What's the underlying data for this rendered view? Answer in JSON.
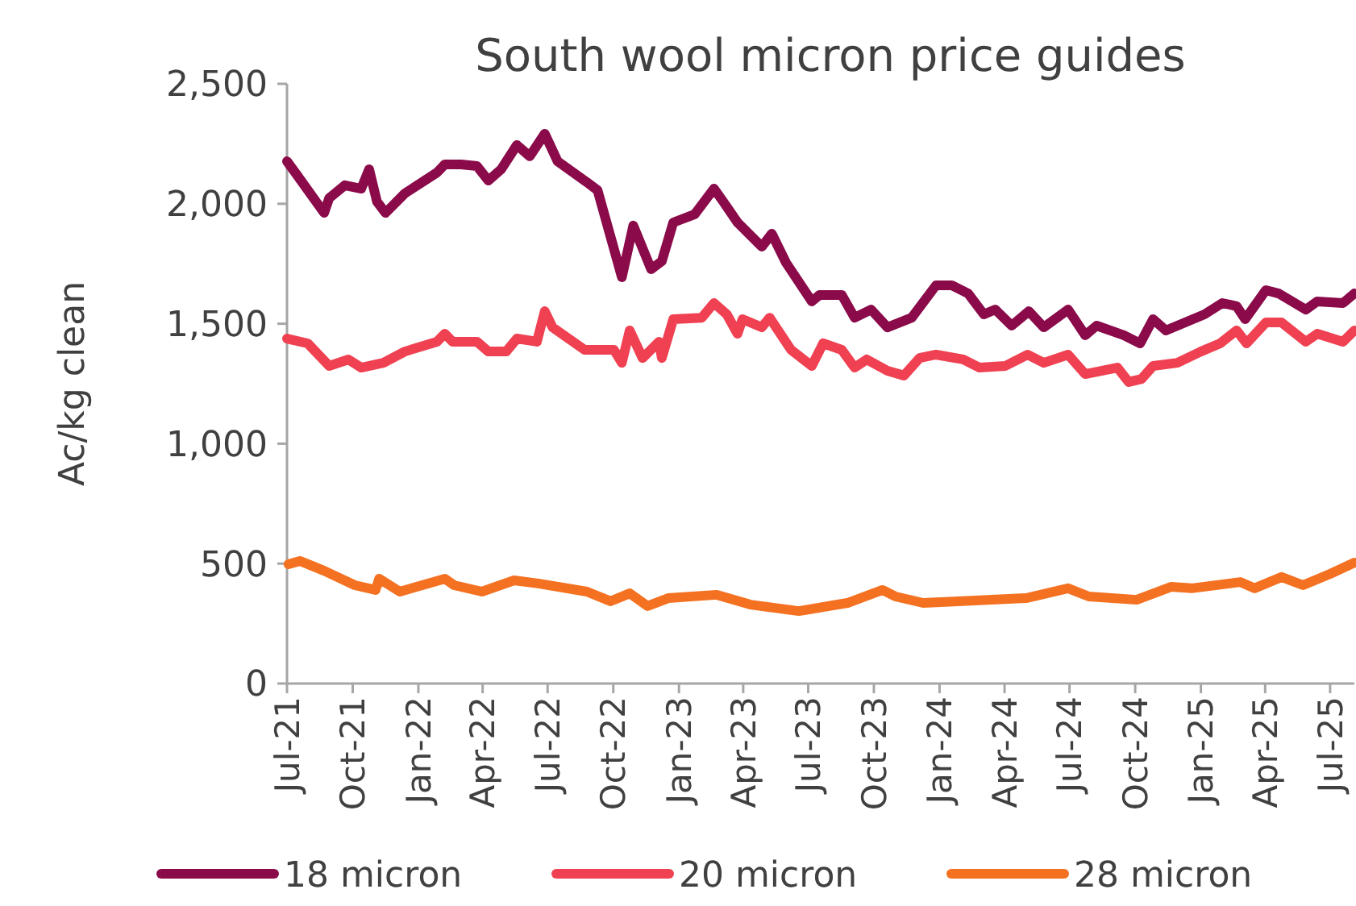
{
  "chart_data": {
    "type": "line",
    "title": "South wool micron price guides",
    "ylabel": "Ac/kg clean",
    "xlim": [
      "2021-07-01",
      "2025-08-04"
    ],
    "xticks": [
      {
        "value": "2021-07-01",
        "label": "Jul-21"
      },
      {
        "value": "2021-10-01",
        "label": "Oct-21"
      },
      {
        "value": "2022-01-01",
        "label": "Jan-22"
      },
      {
        "value": "2022-04-01",
        "label": "Apr-22"
      },
      {
        "value": "2022-07-01",
        "label": "Jul-22"
      },
      {
        "value": "2022-10-01",
        "label": "Oct-22"
      },
      {
        "value": "2023-01-01",
        "label": "Jan-23"
      },
      {
        "value": "2023-04-01",
        "label": "Apr-23"
      },
      {
        "value": "2023-07-01",
        "label": "Jul-23"
      },
      {
        "value": "2023-10-01",
        "label": "Oct-23"
      },
      {
        "value": "2024-01-01",
        "label": "Jan-24"
      },
      {
        "value": "2024-04-01",
        "label": "Apr-24"
      },
      {
        "value": "2024-07-01",
        "label": "Jul-24"
      },
      {
        "value": "2024-10-01",
        "label": "Oct-24"
      },
      {
        "value": "2025-01-01",
        "label": "Jan-25"
      },
      {
        "value": "2025-04-01",
        "label": "Apr-25"
      },
      {
        "value": "2025-07-01",
        "label": "Jul-25"
      }
    ],
    "ylim": [
      0,
      2500
    ],
    "yticks": [
      0,
      {
        "value": 500,
        "label": "500"
      },
      {
        "value": 1000,
        "label": "1,000"
      },
      {
        "value": 1500,
        "label": "1,500"
      },
      {
        "value": 2000,
        "label": "2,000"
      },
      {
        "value": 2500,
        "label": "2,500"
      }
    ],
    "grid": false,
    "legend": "bottom",
    "marker": "none",
    "line_style": "solid",
    "series": [
      {
        "name": "18 micron",
        "color": "#8a0a4a",
        "x": [
          "2021-07-01",
          "2021-07-14",
          "2021-08-22",
          "2021-08-29",
          "2021-09-20",
          "2021-10-13",
          "2021-10-24",
          "2021-11-04",
          "2021-11-16",
          "2021-12-13",
          "2022-01-27",
          "2022-02-07",
          "2022-03-02",
          "2022-03-24",
          "2022-04-09",
          "2022-04-27",
          "2022-05-19",
          "2022-06-06",
          "2022-06-27",
          "2022-07-15",
          "2022-08-25",
          "2022-09-09",
          "2022-10-13",
          "2022-10-29",
          "2022-11-23",
          "2022-12-08",
          "2022-12-24",
          "2023-01-23",
          "2023-02-19",
          "2023-03-04",
          "2023-03-24",
          "2023-04-27",
          "2023-05-11",
          "2023-05-31",
          "2023-07-06",
          "2023-07-17",
          "2023-08-17",
          "2023-09-04",
          "2023-09-27",
          "2023-10-20",
          "2023-11-23",
          "2023-12-27",
          "2024-01-18",
          "2024-02-10",
          "2024-03-03",
          "2024-03-19",
          "2024-04-11",
          "2024-05-05",
          "2024-05-26",
          "2024-06-29",
          "2024-07-23",
          "2024-08-08",
          "2024-09-15",
          "2024-10-08",
          "2024-10-26",
          "2024-11-13",
          "2025-01-06",
          "2025-01-31",
          "2025-02-20",
          "2025-03-04",
          "2025-04-02",
          "2025-04-20",
          "2025-05-28",
          "2025-06-13",
          "2025-07-19",
          "2025-08-04"
        ],
        "values": [
          2177,
          2124,
          1962,
          2023,
          2077,
          2063,
          2144,
          2009,
          1962,
          2043,
          2130,
          2164,
          2164,
          2157,
          2097,
          2144,
          2245,
          2198,
          2292,
          2177,
          2090,
          2056,
          1694,
          1909,
          1727,
          1761,
          1922,
          1956,
          2063,
          2009,
          1922,
          1821,
          1875,
          1754,
          1593,
          1620,
          1620,
          1525,
          1559,
          1485,
          1525,
          1660,
          1660,
          1626,
          1539,
          1559,
          1492,
          1552,
          1485,
          1559,
          1452,
          1492,
          1452,
          1418,
          1519,
          1472,
          1539,
          1586,
          1573,
          1519,
          1640,
          1626,
          1559,
          1593,
          1586,
          1626
        ]
      },
      {
        "name": "20 micron",
        "color": "#ef4152",
        "x": [
          "2021-07-01",
          "2021-07-30",
          "2021-08-29",
          "2021-09-25",
          "2021-10-13",
          "2021-11-13",
          "2021-12-13",
          "2022-01-27",
          "2022-02-07",
          "2022-02-18",
          "2022-03-24",
          "2022-04-09",
          "2022-05-04",
          "2022-05-19",
          "2022-06-16",
          "2022-06-27",
          "2022-07-08",
          "2022-08-22",
          "2022-10-02",
          "2022-10-13",
          "2022-10-24",
          "2022-11-11",
          "2022-12-04",
          "2022-12-08",
          "2022-12-24",
          "2023-02-02",
          "2023-02-19",
          "2023-03-09",
          "2023-03-24",
          "2023-03-31",
          "2023-04-27",
          "2023-05-08",
          "2023-06-07",
          "2023-07-06",
          "2023-07-22",
          "2023-08-17",
          "2023-09-04",
          "2023-09-21",
          "2023-10-20",
          "2023-11-12",
          "2023-12-04",
          "2023-12-27",
          "2024-02-03",
          "2024-02-26",
          "2024-04-02",
          "2024-05-03",
          "2024-05-26",
          "2024-06-29",
          "2024-07-23",
          "2024-09-06",
          "2024-09-22",
          "2024-10-10",
          "2024-10-26",
          "2024-11-29",
          "2025-01-01",
          "2025-01-28",
          "2025-02-20",
          "2025-03-06",
          "2025-04-02",
          "2025-04-24",
          "2025-05-28",
          "2025-06-13",
          "2025-07-19",
          "2025-08-04"
        ],
        "values": [
          1438,
          1418,
          1324,
          1351,
          1317,
          1337,
          1384,
          1425,
          1458,
          1425,
          1425,
          1384,
          1384,
          1438,
          1425,
          1552,
          1485,
          1391,
          1391,
          1337,
          1472,
          1357,
          1425,
          1357,
          1519,
          1525,
          1586,
          1539,
          1458,
          1519,
          1485,
          1525,
          1391,
          1324,
          1418,
          1391,
          1317,
          1351,
          1304,
          1284,
          1357,
          1371,
          1351,
          1317,
          1324,
          1371,
          1337,
          1371,
          1290,
          1317,
          1257,
          1270,
          1324,
          1337,
          1384,
          1418,
          1472,
          1418,
          1505,
          1505,
          1425,
          1458,
          1425,
          1472
        ]
      },
      {
        "name": "28 micron",
        "color": "#f47121",
        "x": [
          "2021-07-03",
          "2021-07-19",
          "2021-08-22",
          "2021-10-04",
          "2021-11-02",
          "2021-11-07",
          "2021-12-06",
          "2022-02-07",
          "2022-02-20",
          "2022-03-31",
          "2022-05-15",
          "2022-06-18",
          "2022-08-25",
          "2022-09-27",
          "2022-10-24",
          "2022-11-18",
          "2022-12-17",
          "2023-02-23",
          "2023-04-11",
          "2023-06-18",
          "2023-08-25",
          "2023-10-13",
          "2023-10-31",
          "2023-12-09",
          "2024-01-27",
          "2024-05-01",
          "2024-06-29",
          "2024-07-28",
          "2024-10-03",
          "2024-11-20",
          "2024-12-19",
          "2025-02-25",
          "2025-03-17",
          "2025-04-24",
          "2025-05-24",
          "2025-07-01",
          "2025-08-04"
        ],
        "values": [
          497,
          511,
          470,
          410,
          390,
          437,
          383,
          437,
          410,
          383,
          430,
          417,
          383,
          343,
          376,
          323,
          356,
          370,
          329,
          302,
          336,
          390,
          363,
          336,
          343,
          356,
          397,
          363,
          349,
          403,
          397,
          423,
          397,
          444,
          410,
          457,
          504
        ]
      }
    ]
  }
}
